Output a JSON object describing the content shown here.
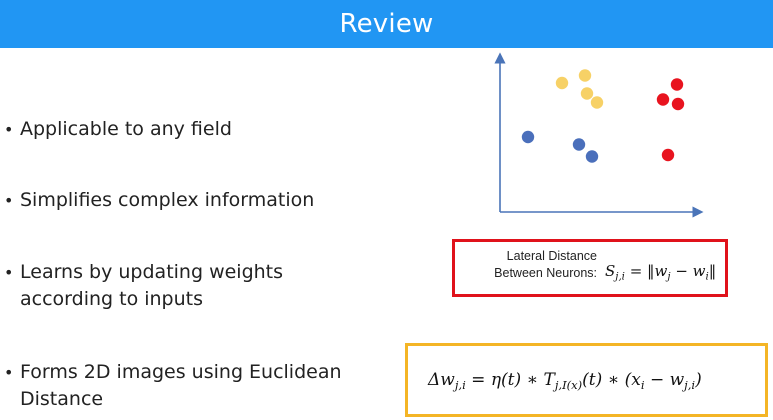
{
  "header": {
    "title": "Review",
    "color": "#2196f3"
  },
  "bullets": [
    {
      "lines": [
        "Applicable to any field"
      ]
    },
    {
      "lines": [
        "Simplifies complex information"
      ]
    },
    {
      "lines": [
        "Learns by updating weights",
        "according to inputs"
      ]
    },
    {
      "lines": [
        "Forms 2D images using Euclidean",
        "Distance"
      ]
    }
  ],
  "scatter": {
    "axis_color": "#4a74b8",
    "clusters": [
      {
        "color": "#f7d166",
        "points": [
          [
            0.62,
            0.86
          ],
          [
            0.85,
            0.91
          ],
          [
            0.87,
            0.79
          ],
          [
            0.97,
            0.73
          ]
        ]
      },
      {
        "color": "#e8141f",
        "points": [
          [
            1.63,
            0.75
          ],
          [
            1.77,
            0.85
          ],
          [
            1.78,
            0.72
          ],
          [
            1.68,
            0.38
          ]
        ]
      },
      {
        "color": "#4a6fbb",
        "points": [
          [
            0.28,
            0.5
          ],
          [
            0.79,
            0.45
          ],
          [
            0.92,
            0.37
          ]
        ]
      }
    ]
  },
  "lateral_distance": {
    "label_line1": "Lateral Distance",
    "label_line2": "Between Neurons:",
    "border_color": "#e0121b"
  },
  "weight_update": {
    "border_color": "#f4b526"
  }
}
